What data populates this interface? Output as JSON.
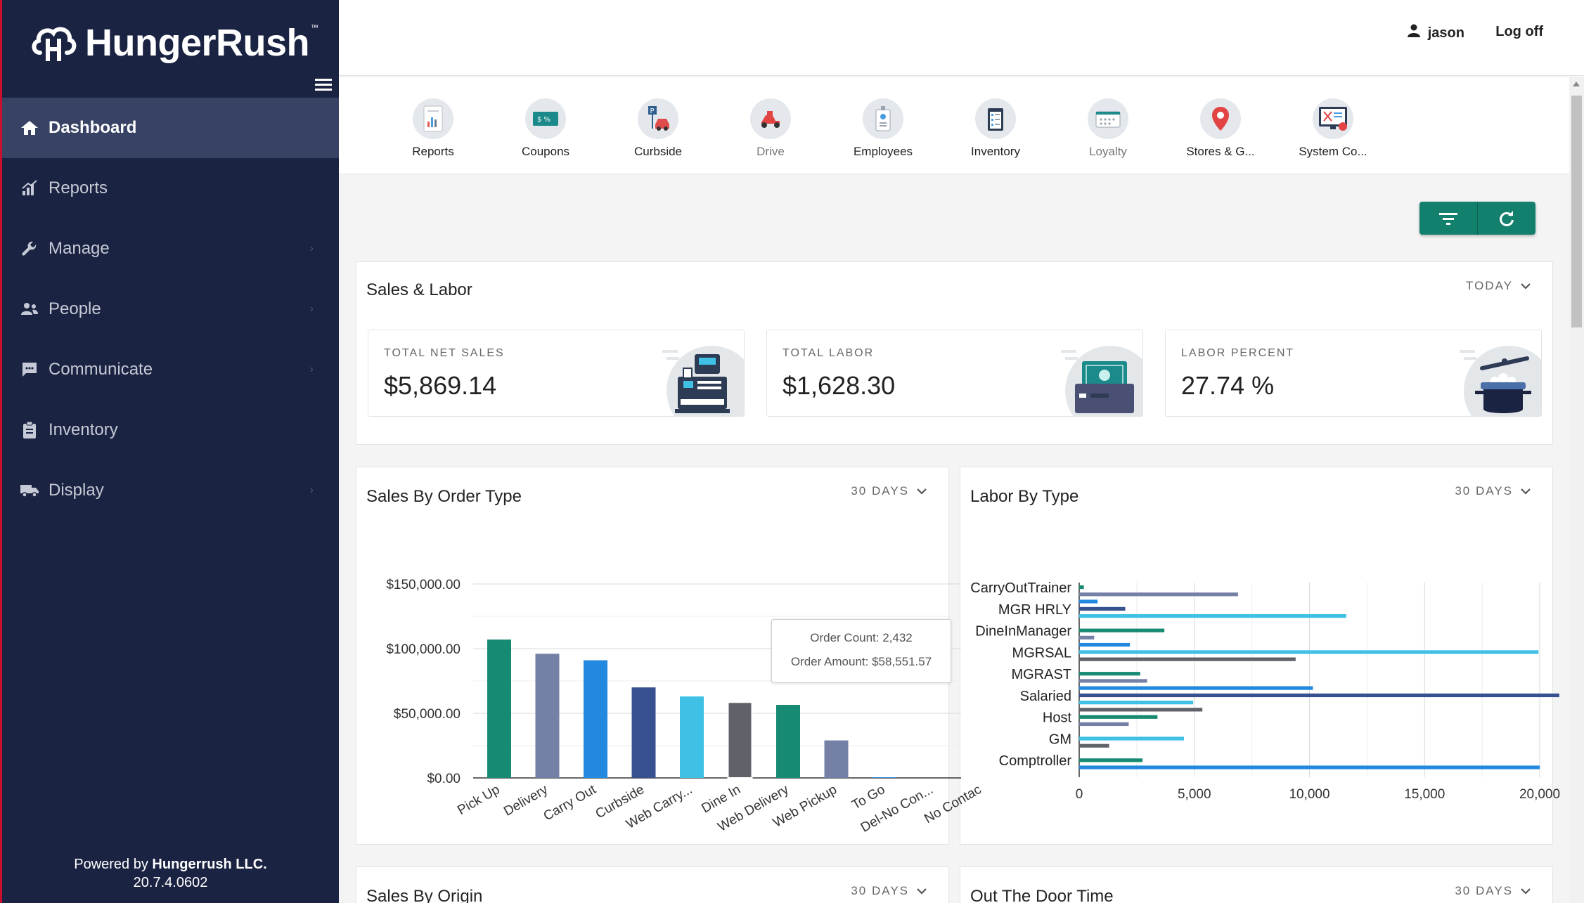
{
  "brand": {
    "name": "HungerRush",
    "tm": "™"
  },
  "sidebar": {
    "items": [
      {
        "label": "Dashboard",
        "icon": "home-icon",
        "active": true,
        "submenu": false
      },
      {
        "label": "Reports",
        "icon": "bar-chart-icon",
        "active": false,
        "submenu": false
      },
      {
        "label": "Manage",
        "icon": "wrench-icon",
        "active": false,
        "submenu": true
      },
      {
        "label": "People",
        "icon": "people-icon",
        "active": false,
        "submenu": true
      },
      {
        "label": "Communicate",
        "icon": "chat-icon",
        "active": false,
        "submenu": true
      },
      {
        "label": "Inventory",
        "icon": "clipboard-icon",
        "active": false,
        "submenu": false
      },
      {
        "label": "Display",
        "icon": "truck-icon",
        "active": false,
        "submenu": true
      }
    ],
    "footer": {
      "prefix": "Powered by ",
      "company": "Hungerrush LLC.",
      "version": "20.7.4.0602"
    }
  },
  "header": {
    "user": "jason",
    "logoff": "Log off"
  },
  "quicklinks": [
    {
      "label": "Reports",
      "icon": "reports-icon"
    },
    {
      "label": "Coupons",
      "icon": "coupons-icon"
    },
    {
      "label": "Curbside",
      "icon": "curbside-icon"
    },
    {
      "label": "Drive",
      "icon": "drive-icon"
    },
    {
      "label": "Employees",
      "icon": "employees-icon"
    },
    {
      "label": "Inventory",
      "icon": "inventory-icon"
    },
    {
      "label": "Loyalty",
      "icon": "loyalty-icon"
    },
    {
      "label": "Stores & G...",
      "icon": "stores-icon"
    },
    {
      "label": "System Co...",
      "icon": "system-config-icon"
    }
  ],
  "sales_labor": {
    "title": "Sales & Labor",
    "period": "TODAY",
    "kpis": [
      {
        "label": "TOTAL NET SALES",
        "value": "$5,869.14",
        "icon": "cash-register-icon"
      },
      {
        "label": "TOTAL LABOR",
        "value": "$1,628.30",
        "icon": "cash-drawer-icon"
      },
      {
        "label": "LABOR PERCENT",
        "value": "27.74 %",
        "icon": "cooking-pot-icon"
      }
    ]
  },
  "sales_by_order_type": {
    "title": "Sales By Order Type",
    "period": "30 DAYS",
    "tooltip": {
      "count": "Order Count: 2,432",
      "amount": "Order Amount: $58,551.57"
    }
  },
  "labor_by_type": {
    "title": "Labor By Type",
    "period": "30 DAYS"
  },
  "sales_by_origin": {
    "title": "Sales By Origin",
    "period": "30 DAYS"
  },
  "out_the_door": {
    "title": "Out The Door Time",
    "period": "30 DAYS"
  },
  "chart_data": [
    {
      "type": "bar",
      "title": "Sales By Order Type",
      "categories": [
        "Pick Up",
        "Delivery",
        "Carry Out",
        "Curbside",
        "Web Carry...",
        "Dine In",
        "Web Delivery",
        "Web Pickup",
        "To Go",
        "Del-No Con...",
        "No Contac"
      ],
      "values": [
        107000,
        96000,
        91000,
        70000,
        63000,
        58551.57,
        56500,
        29000,
        500,
        0,
        0
      ],
      "colors": [
        "#178a73",
        "#7480a6",
        "#2389e0",
        "#375090",
        "#3ec1e4",
        "#5f6269",
        "#178a73",
        "#7480a6",
        "#2389e0",
        "#375090",
        "#3ec1e4"
      ],
      "ylim": [
        0,
        150000
      ],
      "yticks": [
        "$0.00",
        "$50,000.00",
        "$100,000.00",
        "$150,000.00"
      ],
      "grid": true
    },
    {
      "type": "bar",
      "orientation": "horizontal",
      "title": "Labor By Type",
      "categories": [
        "CarryOutTrainer",
        "MGR HRLY",
        "DineInManager",
        "MGRSAL",
        "MGRAST",
        "Salaried",
        "Host",
        "GM",
        "Comptroller"
      ],
      "series": [
        {
          "color": "#178a73",
          "values": [
            200,
            0,
            3700,
            0,
            2650,
            0,
            3400,
            0,
            2750
          ]
        },
        {
          "color": "#7480a6",
          "values": [
            6900,
            0,
            650,
            0,
            2950,
            0,
            2150,
            0,
            0
          ]
        },
        {
          "color": "#2389e0",
          "values": [
            800,
            0,
            2200,
            0,
            10150,
            0,
            0,
            0,
            20000
          ]
        },
        {
          "color": "#375090",
          "values": [
            0,
            2000,
            0,
            0,
            0,
            20850,
            0,
            0,
            0
          ]
        },
        {
          "color": "#3ec1e4",
          "values": [
            0,
            11600,
            0,
            19950,
            0,
            4950,
            0,
            4550,
            0
          ]
        },
        {
          "color": "#5f6269",
          "values": [
            0,
            0,
            0,
            9400,
            0,
            5350,
            0,
            1300,
            0
          ]
        }
      ],
      "xlim": [
        0,
        20000
      ],
      "xticks": [
        "0",
        "5,000",
        "10,000",
        "15,000",
        "20,000"
      ],
      "grid": true
    }
  ]
}
